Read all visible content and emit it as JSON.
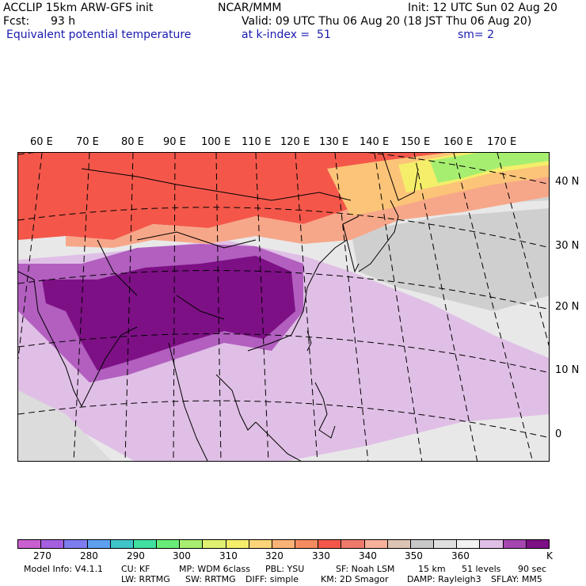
{
  "header": {
    "model_title": "ACCLIP 15km ARW-GFS init",
    "org": "NCAR/MMM",
    "init": "Init: 12 UTC Sun 02 Aug 20",
    "fcst_label": "Fcst:",
    "fcst_value": "93 h",
    "valid": "Valid: 09 UTC Thu 06 Aug 20 (18 JST Thu 06 Aug 20)",
    "field": "Equivalent potential temperature",
    "level": "at k-index =  51",
    "smooth": "sm= 2"
  },
  "map": {
    "longitude_labels": [
      "60 E",
      "70 E",
      "80 E",
      "90 E",
      "100 E",
      "110 E",
      "120 E",
      "130 E",
      "140 E",
      "150 E",
      "160 E",
      "170 E"
    ],
    "latitude_labels": [
      "40 N",
      "30 N",
      "20 N",
      "10 N",
      "0"
    ],
    "colors": {
      "warm_red": "#f4574a",
      "salmon": "#f7a789",
      "orange": "#fcc478",
      "yellow": "#f4ee6a",
      "green": "#a6ee70",
      "light_gray": "#e6e6e6",
      "gray": "#c8c8c8",
      "light_purple": "#e0bfe6",
      "purple": "#a545b0",
      "dark_purple": "#7d1085"
    }
  },
  "colorbar": {
    "colors": [
      "#c95fd0",
      "#a55fe0",
      "#7d7df0",
      "#5f9ff0",
      "#3fc4c8",
      "#3fe0a0",
      "#68ee78",
      "#a6ee70",
      "#e0f070",
      "#f4ee6a",
      "#fcd478",
      "#fbb276",
      "#f68b60",
      "#f4574a",
      "#f07a6a",
      "#f7b09a",
      "#dcc4b4",
      "#c8c8c8",
      "#e0e0e0",
      "#f2f2f2",
      "#e0bfe6",
      "#a545b0",
      "#7d1085"
    ],
    "tick_labels": [
      "270",
      "280",
      "290",
      "300",
      "310",
      "320",
      "330",
      "340",
      "350",
      "360"
    ],
    "unit": "K"
  },
  "footer": {
    "model_info": "Model Info: V4.1.1",
    "cu": "CU: KF",
    "mp": "MP: WDM 6class",
    "pbl": "PBL: YSU",
    "sf": "SF: Noah LSM",
    "res": "15 km",
    "levels": "51 levels",
    "dt": "90 sec",
    "lw": "LW: RRTMG",
    "sw": "SW: RRTMG",
    "diff": "DIFF: simple",
    "km": "KM: 2D Smagor",
    "damp": "DAMP: Rayleigh3",
    "sflay": "SFLAY: MM5"
  }
}
